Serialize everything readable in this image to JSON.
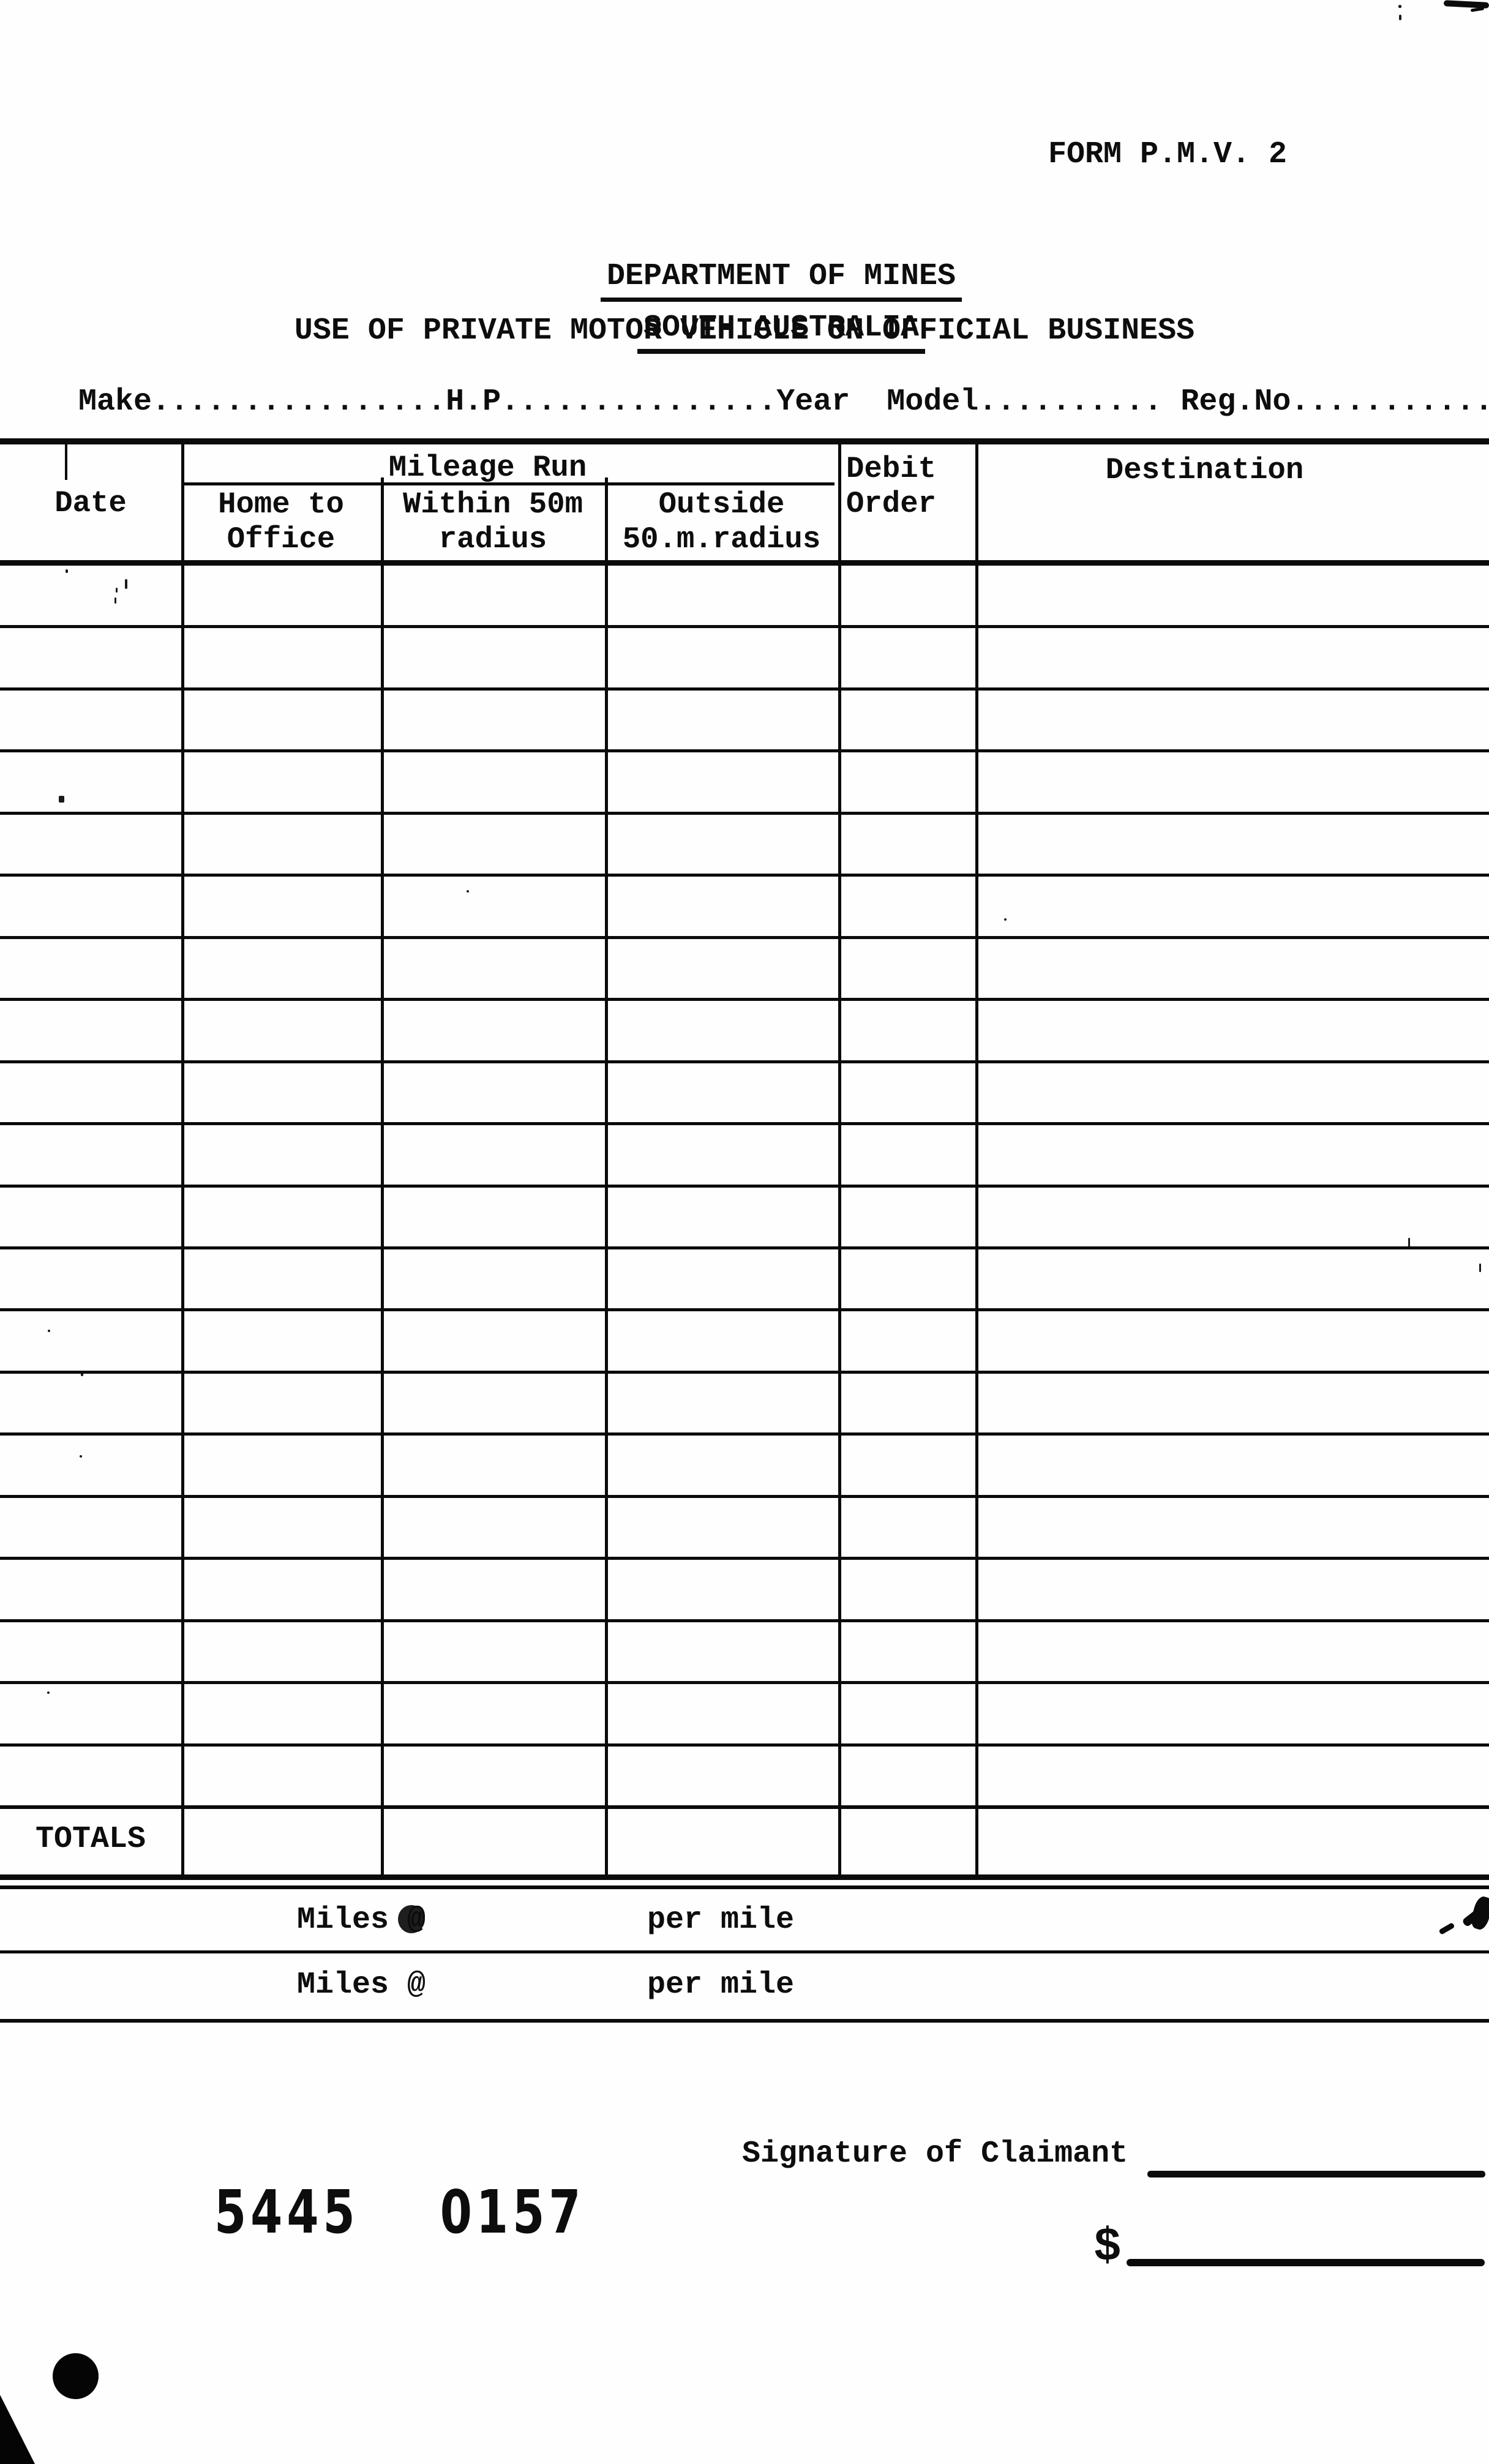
{
  "page": {
    "form_number": "FORM P.M.V. 2"
  },
  "header": {
    "department": "DEPARTMENT OF MINES",
    "region": "SOUTH AUSTRALIA",
    "form_title": "USE OF PRIVATE MOTOR VEHICLE ON OFFICIAL BUSINESS"
  },
  "vehicle_line": {
    "make_label": "Make",
    "make_dots": "................",
    "hp_label": "H.P.",
    "hp_dots": "..............",
    "year_label": "Year",
    "gap": "  ",
    "model_label": "Model",
    "model_dots": "..........",
    "space": " ",
    "regno_label": "Reg.No",
    "regno_dots": "..........."
  },
  "table": {
    "date_header": "Date",
    "mileage_run_header": "Mileage Run",
    "home_to_office_header": "Home to\nOffice",
    "within_50m_header": "Within 50m\nradius",
    "outside_50m_header": "Outside\n50.m.radius",
    "debit_order_header": "Debit\nOrder",
    "destination_header": "Destination",
    "row_count": 20,
    "totals_label": "TOTALS"
  },
  "rates": {
    "row1": {
      "miles_label": "Miles @",
      "per_mile_label": "per mile"
    },
    "row2": {
      "miles_label": "Miles @",
      "per_mile_label": "per mile"
    }
  },
  "footer": {
    "signature_label": "Signature of Claimant",
    "stamp_number_left": "5445",
    "stamp_number_right": "0157",
    "dollar_sign": "$"
  },
  "colors": {
    "ink": "#0d0d0d",
    "paper": "#fefefe",
    "line": "#0b0b0b"
  }
}
